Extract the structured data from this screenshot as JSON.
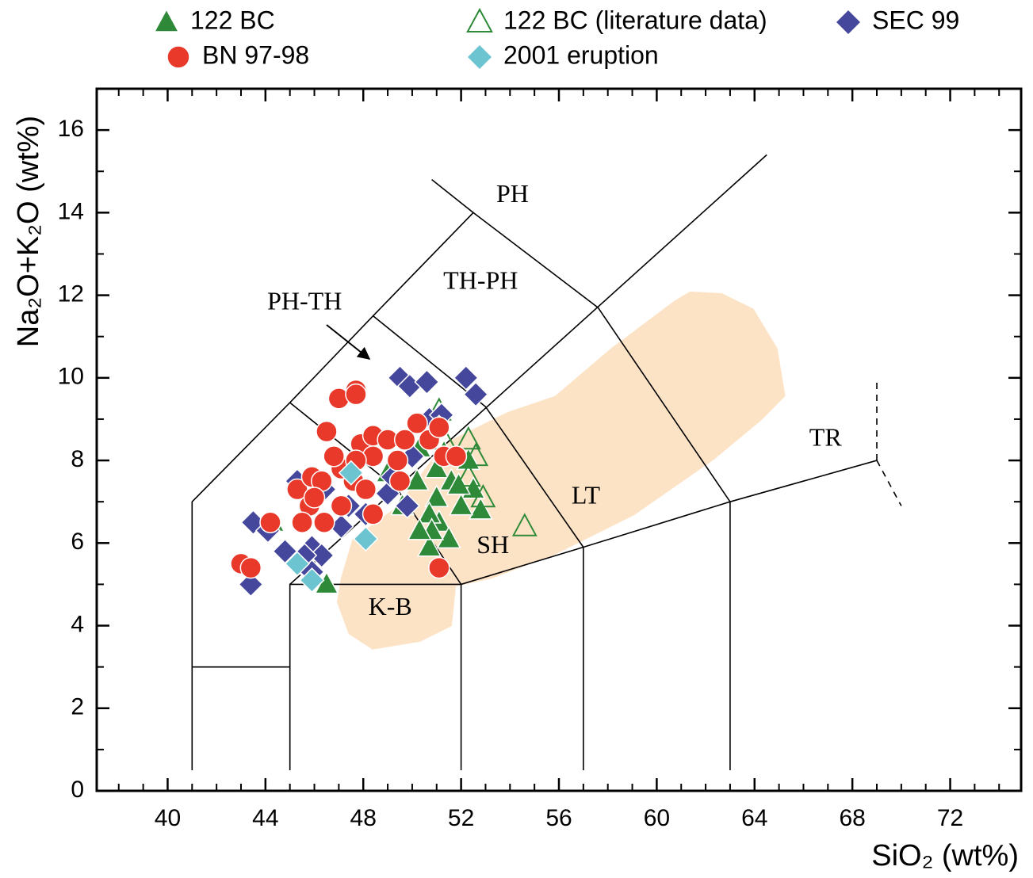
{
  "chart_data": {
    "type": "scatter",
    "x_label": "SiO₂ (wt%)",
    "y_label": "Na₂O+K₂O (wt%)",
    "xlim": [
      37.1,
      74.9
    ],
    "ylim": [
      0,
      17
    ],
    "xticks": [
      40,
      44,
      48,
      52,
      56,
      60,
      64,
      68,
      72
    ],
    "yticks": [
      0,
      2,
      4,
      6,
      8,
      10,
      12,
      14,
      16
    ],
    "xminorticks": [
      38,
      39,
      41,
      42,
      43,
      45,
      46,
      47,
      49,
      50,
      51,
      53,
      54,
      55,
      57,
      58,
      59,
      61,
      62,
      63,
      65,
      66,
      67,
      69,
      70,
      71,
      73,
      74
    ],
    "yminorticks": [
      1,
      3,
      5,
      7,
      9,
      11,
      13,
      15
    ],
    "region_color": "#fde3c6",
    "region": [
      [
        47.08,
        5.14
      ],
      [
        47.56,
        6.1
      ],
      [
        49.35,
        6.87
      ],
      [
        51.3,
        8.41
      ],
      [
        53.9,
        9.17
      ],
      [
        55.84,
        9.56
      ],
      [
        58.12,
        10.71
      ],
      [
        60.71,
        11.86
      ],
      [
        61.36,
        12.09
      ],
      [
        62.66,
        12.05
      ],
      [
        63.96,
        11.67
      ],
      [
        64.94,
        10.71
      ],
      [
        65.26,
        9.56
      ],
      [
        64.29,
        8.98
      ],
      [
        62.34,
        8.02
      ],
      [
        59.09,
        6.68
      ],
      [
        55.84,
        5.72
      ],
      [
        53.25,
        5.14
      ],
      [
        51.79,
        4.95
      ],
      [
        51.62,
        3.99
      ],
      [
        50.32,
        3.61
      ],
      [
        48.38,
        3.42
      ],
      [
        47.4,
        3.8
      ],
      [
        46.92,
        4.57
      ]
    ],
    "boundaries": [
      {
        "points": [
          [
            41,
            0.5
          ],
          [
            41,
            7
          ],
          [
            45,
            9.4
          ],
          [
            48.4,
            11.5
          ],
          [
            52.5,
            14
          ],
          [
            50.8,
            14.8
          ]
        ],
        "dashed": false
      },
      {
        "points": [
          [
            52.5,
            14
          ],
          [
            57.6,
            11.7
          ],
          [
            63,
            7
          ]
        ],
        "dashed": false
      },
      {
        "points": [
          [
            45,
            9.4
          ],
          [
            49.4,
            7.3
          ],
          [
            52,
            5
          ]
        ],
        "dashed": false
      },
      {
        "points": [
          [
            48.4,
            11.5
          ],
          [
            53,
            9.3
          ],
          [
            57,
            5.9
          ]
        ],
        "dashed": false
      },
      {
        "points": [
          [
            45,
            5
          ],
          [
            64.5,
            15.4
          ]
        ],
        "dashed": false
      },
      {
        "points": [
          [
            41,
            3
          ],
          [
            45,
            3
          ]
        ],
        "dashed": false
      },
      {
        "points": [
          [
            45,
            0.5
          ],
          [
            45,
            5
          ],
          [
            52,
            5
          ],
          [
            57,
            5.9
          ],
          [
            63,
            7
          ],
          [
            69,
            8
          ]
        ],
        "dashed": false
      },
      {
        "points": [
          [
            52,
            0.5
          ],
          [
            52,
            5
          ]
        ],
        "dashed": false
      },
      {
        "points": [
          [
            57,
            0.5
          ],
          [
            57,
            5.9
          ]
        ],
        "dashed": false
      },
      {
        "points": [
          [
            63,
            0.5
          ],
          [
            63,
            7
          ]
        ],
        "dashed": false
      },
      {
        "points": [
          [
            69,
            8
          ],
          [
            69,
            10
          ]
        ],
        "dashed": true
      },
      {
        "points": [
          [
            69,
            8
          ],
          [
            70,
            6.9
          ]
        ],
        "dashed": true
      }
    ],
    "field_labels": [
      {
        "text": "PH",
        "x": 54.1,
        "y": 14.4
      },
      {
        "text": "TH-PH",
        "x": 52.8,
        "y": 12.3
      },
      {
        "text": "PH-TH",
        "x": 45.6,
        "y": 11.8
      },
      {
        "text": "TR",
        "x": 66.9,
        "y": 8.5
      },
      {
        "text": "LT",
        "x": 57.1,
        "y": 7.1
      },
      {
        "text": "SH",
        "x": 53.3,
        "y": 5.9
      },
      {
        "text": "K-B",
        "x": 49.1,
        "y": 4.4
      }
    ],
    "series": [
      {
        "name": "122 BC",
        "color": "#2e8a38",
        "marker": "triangle",
        "x": [
          44.3,
          46.5,
          49.0,
          49.6,
          50.3,
          51.0,
          52.3,
          51.6,
          52.5,
          52.8,
          51.0,
          51.1,
          50.7,
          51.5,
          50.2,
          50.7,
          51.3,
          52.0,
          51.9,
          50.8,
          50.3
        ],
        "values": [
          6.5,
          5.0,
          7.7,
          6.9,
          8.3,
          7.8,
          8.0,
          7.5,
          7.3,
          6.8,
          7.1,
          6.5,
          5.9,
          6.1,
          7.5,
          6.7,
          8.2,
          6.9,
          7.4,
          6.3,
          6.3
        ]
      },
      {
        "name": "122 BC (literature data)",
        "color": "#2e8a38",
        "marker": "open-triangle",
        "x": [
          54.6,
          52.3,
          52.6,
          51.3,
          51.1,
          52.9,
          52.3
        ],
        "values": [
          6.4,
          8.5,
          8.1,
          8.5,
          9.2,
          7.1,
          7.6
        ]
      },
      {
        "name": "SEC 99",
        "color": "#45479c",
        "marker": "diamond",
        "x": [
          49.5,
          49.9,
          50.6,
          52.2,
          52.6,
          43.5,
          44.1,
          43.4,
          44.8,
          45.5,
          45.9,
          46.3,
          45.3,
          46.4,
          47.4,
          48.1,
          49.0,
          49.2,
          50.0,
          50.7,
          51.2,
          51.1,
          49.8,
          47.1,
          45.9,
          45.6
        ],
        "values": [
          10.0,
          9.8,
          9.9,
          10.0,
          9.6,
          6.5,
          6.3,
          5.0,
          5.8,
          5.5,
          5.9,
          5.7,
          7.5,
          7.3,
          6.9,
          6.7,
          7.2,
          7.6,
          8.1,
          9.0,
          9.1,
          8.8,
          6.9,
          6.4,
          5.3,
          5.7
        ]
      },
      {
        "name": "BN 97-98",
        "color": "#e8392b",
        "marker": "circle",
        "x": [
          43.0,
          43.4,
          44.2,
          46.5,
          47.0,
          47.7,
          47.7,
          45.3,
          45.8,
          45.9,
          46.3,
          45.5,
          46.0,
          46.4,
          47.1,
          47.6,
          48.1,
          47.9,
          48.4,
          49.0,
          48.4,
          49.4,
          49.7,
          50.2,
          50.7,
          51.1,
          51.3,
          51.8,
          51.1,
          48.4,
          47.1,
          46.8,
          49.5,
          47.7
        ],
        "values": [
          5.5,
          5.4,
          6.5,
          8.7,
          9.5,
          9.7,
          9.6,
          7.3,
          6.9,
          7.6,
          7.5,
          6.5,
          7.1,
          6.5,
          6.9,
          7.5,
          7.3,
          8.4,
          8.6,
          8.5,
          8.1,
          8.0,
          8.5,
          8.9,
          8.5,
          8.8,
          8.1,
          8.1,
          5.4,
          6.7,
          7.8,
          8.1,
          7.5,
          8.0
        ]
      },
      {
        "name": "2001 eruption",
        "color": "#6cc4d0",
        "marker": "diamond",
        "x": [
          47.5,
          48.1,
          45.3,
          45.9
        ],
        "values": [
          7.7,
          6.1,
          5.5,
          5.1
        ]
      }
    ]
  }
}
